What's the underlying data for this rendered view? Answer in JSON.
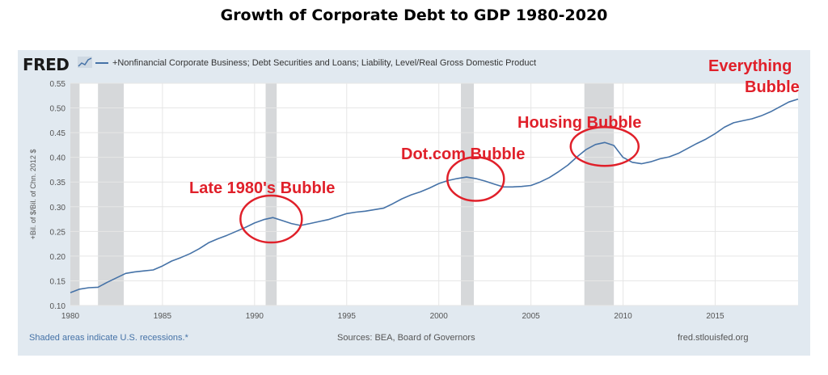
{
  "title": "Growth of Corporate Debt to GDP 1980-2020",
  "fred": {
    "logo": "FRED",
    "legend": "+Nonfinancial Corporate Business; Debt Securities and Loans; Liability, Level/Real Gross Domestic Product",
    "recession_note": "Shaded areas indicate U.S. recessions.*",
    "sources": "Sources: BEA, Board of Governors",
    "site": "fred.stlouisfed.org"
  },
  "annotations": {
    "late80s": "Late 1980's Bubble",
    "dotcom": "Dot.com Bubble",
    "housing": "Housing Bubble",
    "everything_1": "Everything",
    "everything_2": "Bubble"
  },
  "colors": {
    "line": "#4572a7",
    "panel": "#e1e9f0",
    "recession": "#d6d8da",
    "annotation": "#e0202a"
  },
  "chart_data": {
    "type": "line",
    "title": "",
    "ylabel": "+Bil. of $/Bil. of Chn. 2012 $",
    "xlabel": "",
    "ylim": [
      0.1,
      0.55
    ],
    "xlim": [
      1980,
      2019.5
    ],
    "yticks": [
      "0.10",
      "0.15",
      "0.20",
      "0.25",
      "0.30",
      "0.35",
      "0.40",
      "0.45",
      "0.50",
      "0.55"
    ],
    "xticks": [
      "1980",
      "1985",
      "1990",
      "1995",
      "2000",
      "2005",
      "2010",
      "2015"
    ],
    "grid": true,
    "recessions": [
      [
        1980.0,
        1980.5
      ],
      [
        1981.5,
        1982.9
      ],
      [
        1990.6,
        1991.2
      ],
      [
        2001.2,
        2001.9
      ],
      [
        2007.9,
        2009.5
      ]
    ],
    "series": [
      {
        "name": "+Nonfinancial Corporate Business; Debt Securities and Loans; Liability, Level/Real Gross Domestic Product",
        "x": [
          1980.0,
          1980.5,
          1981.0,
          1981.5,
          1982.0,
          1982.5,
          1983.0,
          1983.5,
          1984.0,
          1984.5,
          1985.0,
          1985.5,
          1986.0,
          1986.5,
          1987.0,
          1987.5,
          1988.0,
          1988.5,
          1989.0,
          1989.5,
          1990.0,
          1990.5,
          1991.0,
          1991.5,
          1992.0,
          1992.5,
          1993.0,
          1993.5,
          1994.0,
          1994.5,
          1995.0,
          1995.5,
          1996.0,
          1996.5,
          1997.0,
          1997.5,
          1998.0,
          1998.5,
          1999.0,
          1999.5,
          2000.0,
          2000.5,
          2001.0,
          2001.5,
          2002.0,
          2002.5,
          2003.0,
          2003.5,
          2004.0,
          2004.5,
          2005.0,
          2005.5,
          2006.0,
          2006.5,
          2007.0,
          2007.5,
          2008.0,
          2008.5,
          2009.0,
          2009.5,
          2010.0,
          2010.5,
          2011.0,
          2011.5,
          2012.0,
          2012.5,
          2013.0,
          2013.5,
          2014.0,
          2014.5,
          2015.0,
          2015.5,
          2016.0,
          2016.5,
          2017.0,
          2017.5,
          2018.0,
          2018.5,
          2019.0,
          2019.5
        ],
        "values": [
          0.126,
          0.133,
          0.136,
          0.137,
          0.147,
          0.156,
          0.165,
          0.168,
          0.17,
          0.172,
          0.18,
          0.19,
          0.197,
          0.205,
          0.215,
          0.227,
          0.235,
          0.242,
          0.25,
          0.258,
          0.267,
          0.274,
          0.278,
          0.272,
          0.266,
          0.262,
          0.266,
          0.27,
          0.274,
          0.28,
          0.286,
          0.289,
          0.291,
          0.294,
          0.297,
          0.306,
          0.316,
          0.324,
          0.33,
          0.338,
          0.347,
          0.353,
          0.357,
          0.36,
          0.357,
          0.352,
          0.346,
          0.34,
          0.34,
          0.341,
          0.343,
          0.35,
          0.359,
          0.371,
          0.384,
          0.401,
          0.416,
          0.426,
          0.43,
          0.424,
          0.4,
          0.39,
          0.387,
          0.391,
          0.397,
          0.401,
          0.408,
          0.418,
          0.428,
          0.437,
          0.448,
          0.461,
          0.47,
          0.474,
          0.478,
          0.484,
          0.492,
          0.502,
          0.512,
          0.518
        ]
      }
    ]
  }
}
